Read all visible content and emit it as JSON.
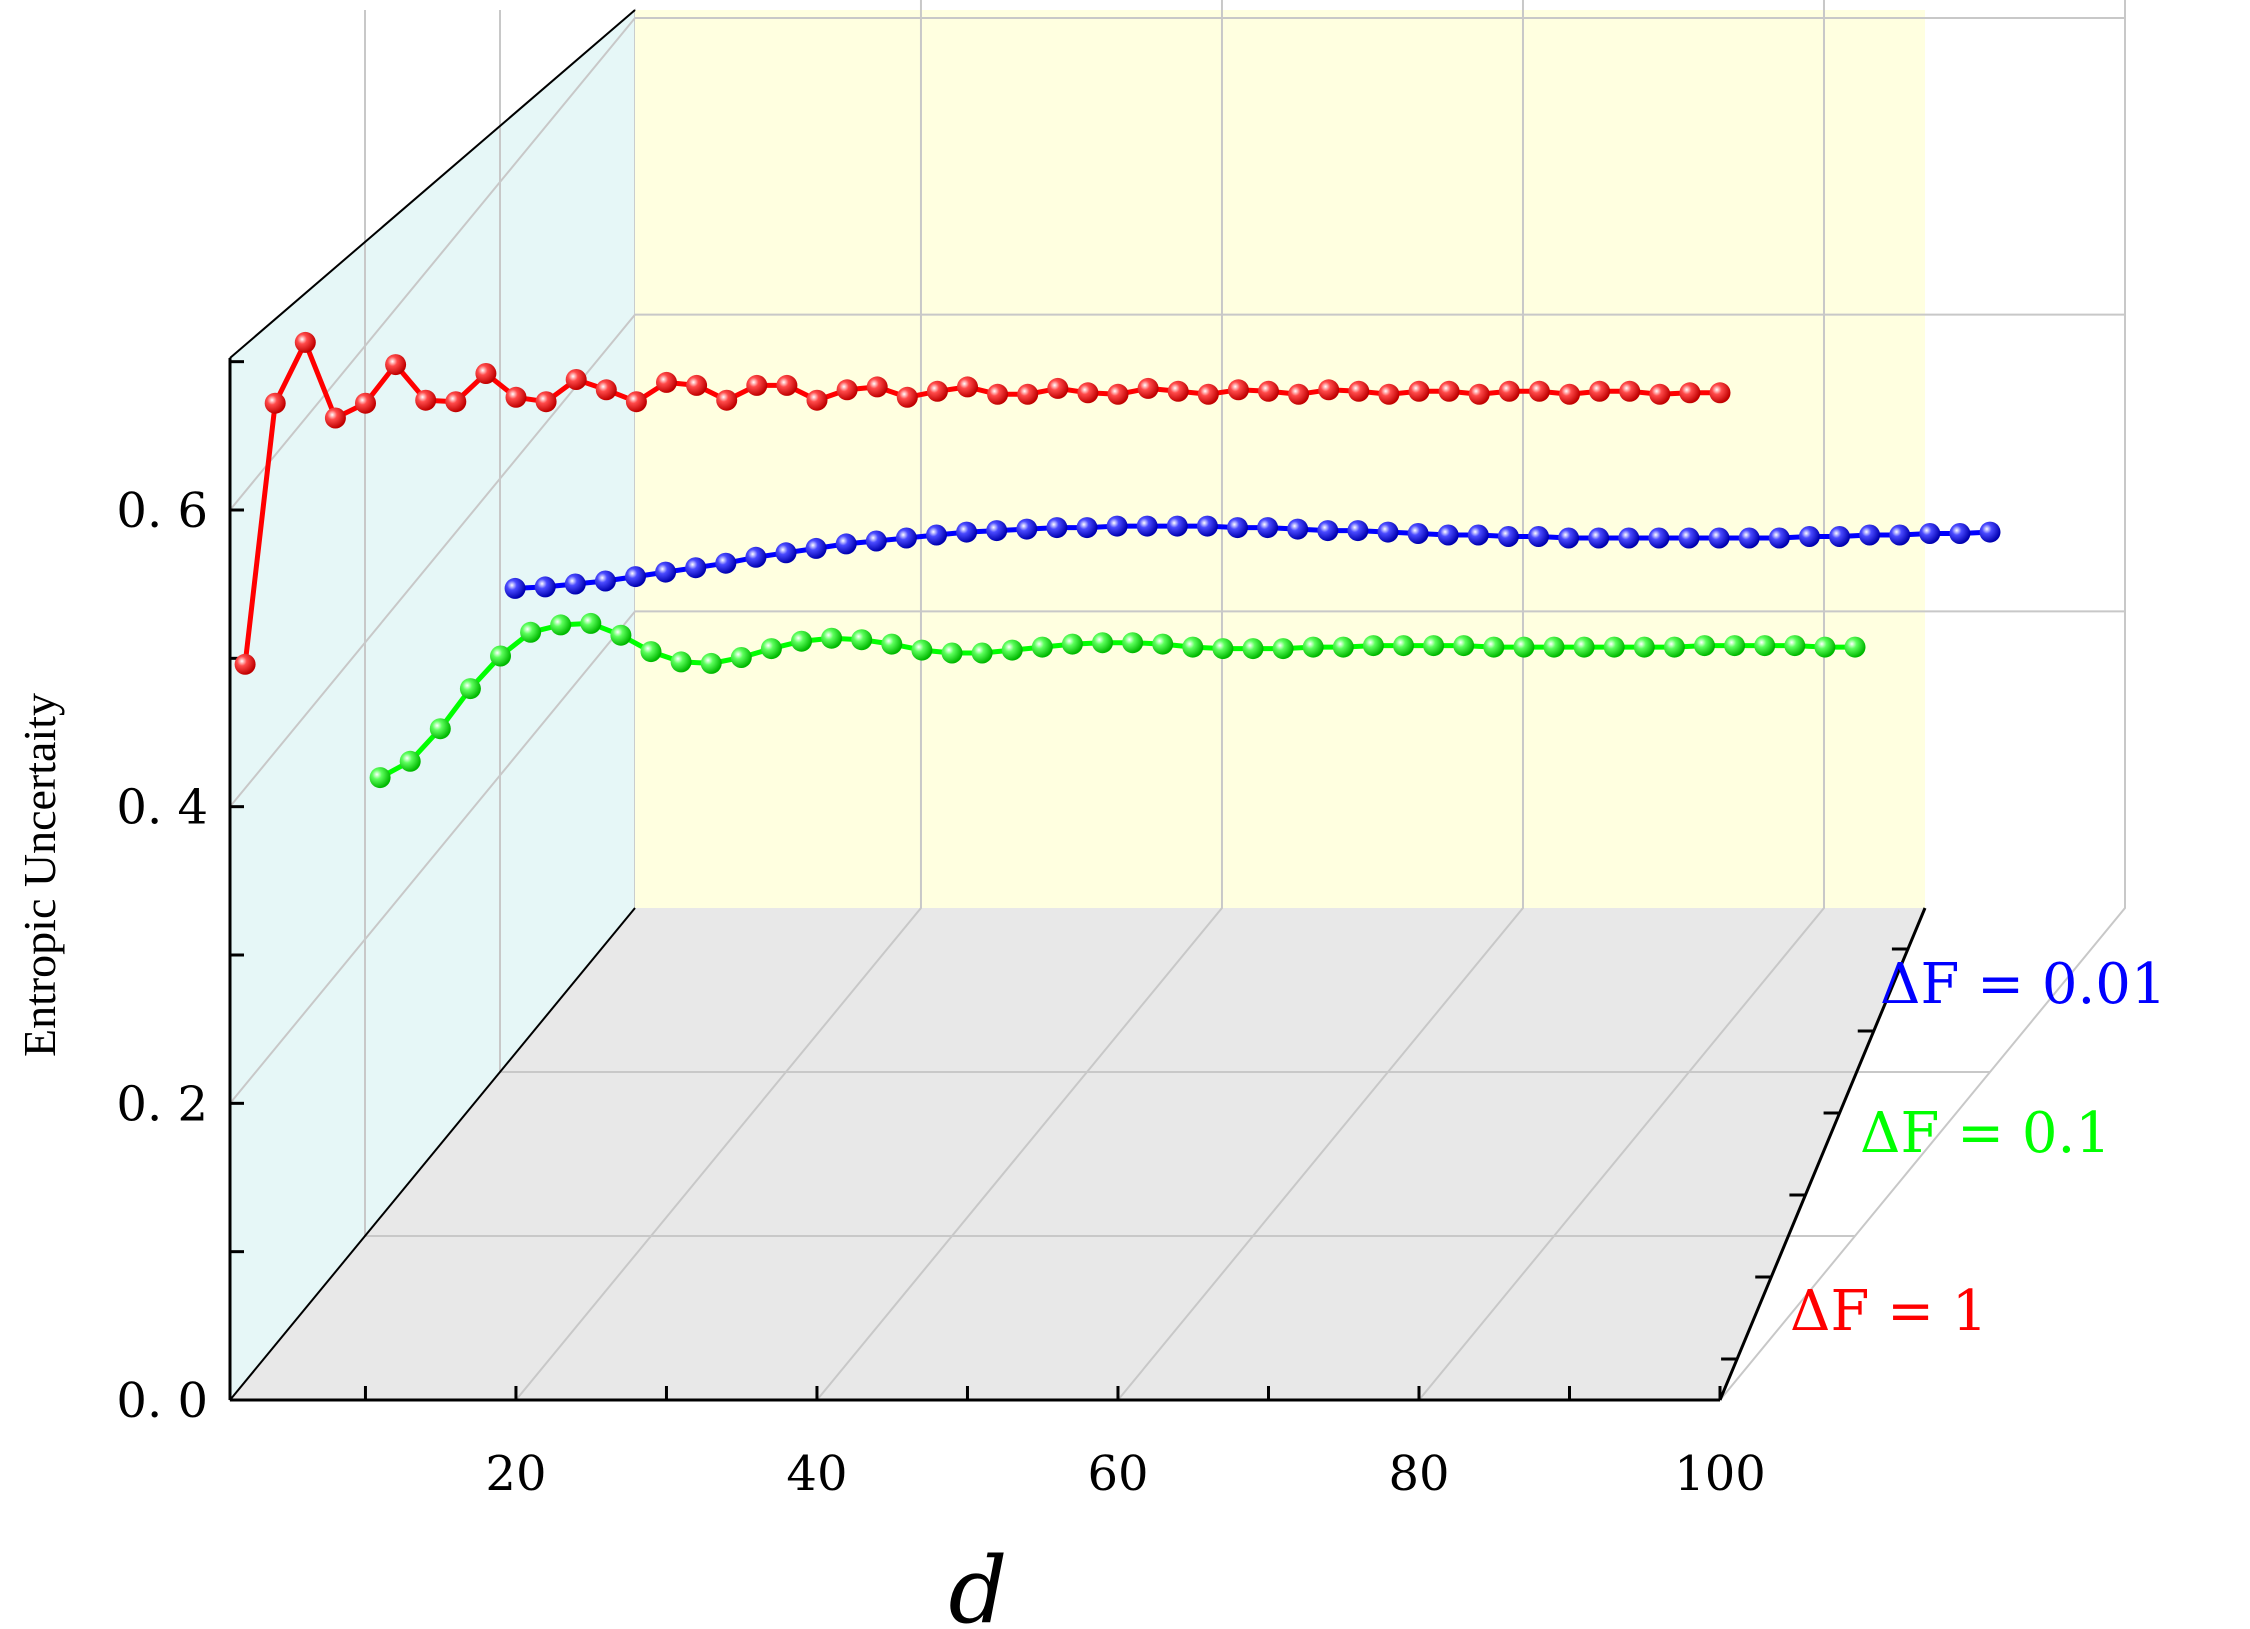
{
  "chart_data": {
    "type": "line",
    "title": "",
    "xlabel": "d",
    "ylabel": "Entropic Uncertaity",
    "zlabel": "",
    "xlim": [
      1,
      100
    ],
    "ylim": [
      0,
      0.7
    ],
    "x_ticks": [
      20,
      40,
      60,
      80,
      100
    ],
    "y_ticks": [
      "0. 0",
      "0. 2",
      "0. 4",
      "0. 6"
    ],
    "z_categories": [
      "ΔF = 1",
      "ΔF = 0.1",
      "ΔF = 0.01"
    ],
    "grid": true,
    "series": [
      {
        "name": "ΔF = 1",
        "color": "#ff0000",
        "x": [
          2,
          4,
          6,
          8,
          10,
          12,
          14,
          16,
          18,
          20,
          22,
          24,
          26,
          28,
          30,
          32,
          34,
          36,
          38,
          40,
          42,
          44,
          46,
          48,
          50,
          52,
          54,
          56,
          58,
          60,
          62,
          64,
          66,
          68,
          70,
          72,
          74,
          76,
          78,
          80,
          82,
          84,
          86,
          88,
          90,
          92,
          94,
          96,
          98,
          100
        ],
        "values": [
          0.496,
          0.672,
          0.713,
          0.662,
          0.672,
          0.698,
          0.674,
          0.673,
          0.692,
          0.676,
          0.673,
          0.688,
          0.681,
          0.673,
          0.686,
          0.684,
          0.674,
          0.684,
          0.684,
          0.674,
          0.681,
          0.683,
          0.676,
          0.68,
          0.683,
          0.678,
          0.678,
          0.682,
          0.679,
          0.678,
          0.682,
          0.68,
          0.678,
          0.681,
          0.68,
          0.678,
          0.681,
          0.68,
          0.678,
          0.68,
          0.68,
          0.678,
          0.68,
          0.68,
          0.678,
          0.68,
          0.68,
          0.678,
          0.679,
          0.679
        ]
      },
      {
        "name": "ΔF = 0.1",
        "color": "#00ff00",
        "x": [
          2,
          4,
          6,
          8,
          10,
          12,
          14,
          16,
          18,
          20,
          22,
          24,
          26,
          28,
          30,
          32,
          34,
          36,
          38,
          40,
          42,
          44,
          46,
          48,
          50,
          52,
          54,
          56,
          58,
          60,
          62,
          64,
          66,
          68,
          70,
          72,
          74,
          76,
          78,
          80,
          82,
          84,
          86,
          88,
          90,
          92,
          94,
          96,
          98,
          100
        ],
        "values": [
          0.309,
          0.32,
          0.342,
          0.369,
          0.391,
          0.407,
          0.412,
          0.413,
          0.405,
          0.394,
          0.387,
          0.386,
          0.39,
          0.396,
          0.401,
          0.403,
          0.402,
          0.399,
          0.395,
          0.393,
          0.393,
          0.395,
          0.397,
          0.399,
          0.4,
          0.4,
          0.399,
          0.397,
          0.396,
          0.396,
          0.396,
          0.397,
          0.397,
          0.398,
          0.398,
          0.398,
          0.398,
          0.397,
          0.397,
          0.397,
          0.397,
          0.397,
          0.397,
          0.397,
          0.398,
          0.398,
          0.398,
          0.398,
          0.397,
          0.397
        ]
      },
      {
        "name": "ΔF = 0.01",
        "color": "#0000ff",
        "x": [
          2,
          4,
          6,
          8,
          10,
          12,
          14,
          16,
          18,
          20,
          22,
          24,
          26,
          28,
          30,
          32,
          34,
          36,
          38,
          40,
          42,
          44,
          46,
          48,
          50,
          52,
          54,
          56,
          58,
          60,
          62,
          64,
          66,
          68,
          70,
          72,
          74,
          76,
          78,
          80,
          82,
          84,
          86,
          88,
          90,
          92,
          94,
          96,
          98,
          100
        ],
        "values": [
          0.326,
          0.327,
          0.329,
          0.331,
          0.334,
          0.337,
          0.34,
          0.343,
          0.347,
          0.35,
          0.353,
          0.356,
          0.358,
          0.36,
          0.362,
          0.364,
          0.365,
          0.366,
          0.367,
          0.367,
          0.368,
          0.368,
          0.368,
          0.368,
          0.367,
          0.367,
          0.366,
          0.365,
          0.365,
          0.364,
          0.363,
          0.362,
          0.362,
          0.361,
          0.361,
          0.36,
          0.36,
          0.36,
          0.36,
          0.36,
          0.36,
          0.36,
          0.36,
          0.361,
          0.361,
          0.362,
          0.362,
          0.363,
          0.363,
          0.364
        ]
      }
    ]
  }
}
